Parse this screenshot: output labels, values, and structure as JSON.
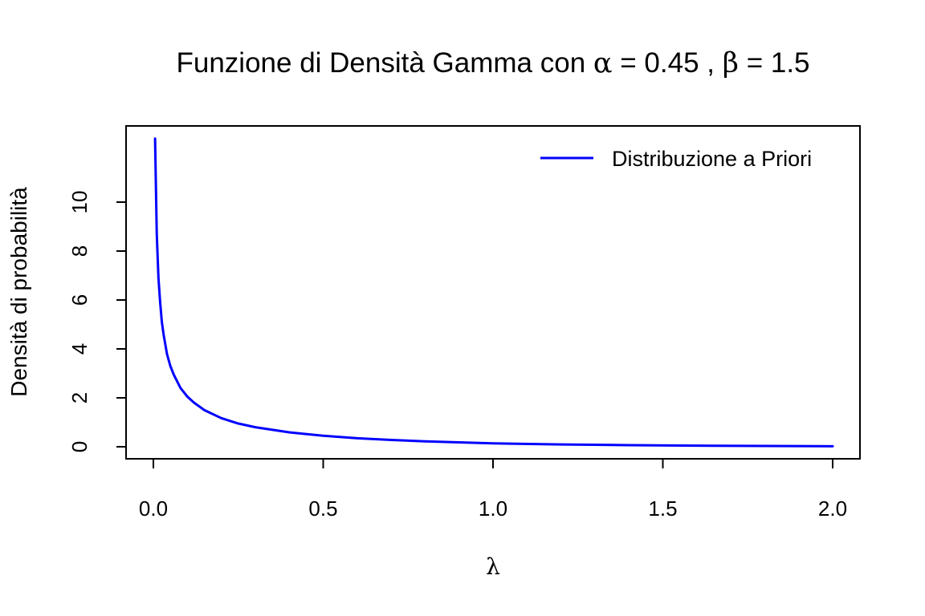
{
  "chart_data": {
    "type": "line",
    "title": {
      "prefix": "Funzione di Densità Gamma con ",
      "alpha_symbol": "α",
      "alpha_value": " = 0.45 , ",
      "beta_symbol": "β",
      "beta_value": " = 1.5"
    },
    "xlabel": "λ",
    "ylabel": "Densità di probabilità",
    "xlim": [
      0,
      2
    ],
    "ylim": [
      0,
      12
    ],
    "x_ticks": [
      0.0,
      0.5,
      1.0,
      1.5,
      2.0
    ],
    "x_tick_labels": [
      "0.0",
      "0.5",
      "1.0",
      "1.5",
      "2.0"
    ],
    "y_ticks": [
      0,
      2,
      4,
      6,
      8,
      10
    ],
    "y_tick_labels": [
      "0",
      "2",
      "4",
      "6",
      "8",
      "10"
    ],
    "grid": false,
    "legend_position": "top-right",
    "series": [
      {
        "name": "Distribuzione a Priori",
        "color": "#0000ff",
        "x": [
          0.005,
          0.01,
          0.015,
          0.02,
          0.025,
          0.03,
          0.04,
          0.05,
          0.06,
          0.08,
          0.1,
          0.12,
          0.15,
          0.2,
          0.25,
          0.3,
          0.4,
          0.5,
          0.6,
          0.7,
          0.8,
          0.9,
          1.0,
          1.2,
          1.4,
          1.6,
          1.8,
          2.0
        ],
        "y": [
          12.6,
          8.7,
          6.9,
          5.9,
          5.1,
          4.6,
          3.8,
          3.3,
          2.95,
          2.4,
          2.05,
          1.8,
          1.5,
          1.17,
          0.95,
          0.8,
          0.59,
          0.45,
          0.35,
          0.28,
          0.22,
          0.18,
          0.14,
          0.095,
          0.065,
          0.045,
          0.031,
          0.021
        ]
      }
    ]
  }
}
